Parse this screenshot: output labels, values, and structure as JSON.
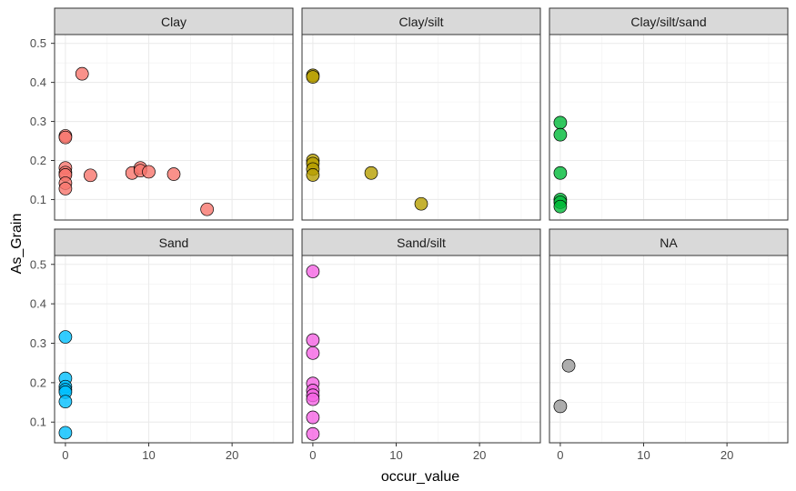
{
  "chart_data": {
    "type": "scatter",
    "xlabel": "occur_value",
    "ylabel": "As_Grain",
    "xlim": [
      -1.3,
      27.3
    ],
    "ylim": [
      0.0475,
      0.5225
    ],
    "x_ticks": [
      0,
      10,
      20
    ],
    "x_tick_labels": [
      "0",
      "10",
      "20"
    ],
    "y_ticks": [
      0.1,
      0.2,
      0.3,
      0.4,
      0.5
    ],
    "y_tick_labels": [
      "0.1",
      "0.2",
      "0.3",
      "0.4",
      "0.5"
    ],
    "grid": true,
    "theme": "bw",
    "strip_fill": "#d9d9d9",
    "panels": [
      {
        "name": "Clay",
        "color": "#F8766D",
        "points": [
          {
            "x": 2,
            "y": 0.422
          },
          {
            "x": 0,
            "y": 0.263
          },
          {
            "x": 0,
            "y": 0.259
          },
          {
            "x": 0,
            "y": 0.181
          },
          {
            "x": 0,
            "y": 0.169
          },
          {
            "x": 0,
            "y": 0.163
          },
          {
            "x": 0,
            "y": 0.142
          },
          {
            "x": 0,
            "y": 0.128
          },
          {
            "x": 3,
            "y": 0.162
          },
          {
            "x": 8,
            "y": 0.168
          },
          {
            "x": 9,
            "y": 0.181
          },
          {
            "x": 9,
            "y": 0.174
          },
          {
            "x": 10,
            "y": 0.171
          },
          {
            "x": 13,
            "y": 0.165
          },
          {
            "x": 17,
            "y": 0.075
          }
        ]
      },
      {
        "name": "Clay/silt",
        "color": "#B79F00",
        "points": [
          {
            "x": 0,
            "y": 0.418
          },
          {
            "x": 0,
            "y": 0.414
          },
          {
            "x": 0,
            "y": 0.2
          },
          {
            "x": 0,
            "y": 0.192
          },
          {
            "x": 0,
            "y": 0.178
          },
          {
            "x": 0,
            "y": 0.163
          },
          {
            "x": 7,
            "y": 0.168
          },
          {
            "x": 13,
            "y": 0.089
          }
        ]
      },
      {
        "name": "Clay/silt/sand",
        "color": "#00BA38",
        "points": [
          {
            "x": 0,
            "y": 0.297
          },
          {
            "x": 0,
            "y": 0.266
          },
          {
            "x": 0,
            "y": 0.168
          },
          {
            "x": 0,
            "y": 0.1
          },
          {
            "x": 0,
            "y": 0.093
          },
          {
            "x": 0,
            "y": 0.082
          }
        ]
      },
      {
        "name": "Sand",
        "color": "#00BFFF",
        "points": [
          {
            "x": 0,
            "y": 0.316
          },
          {
            "x": 0,
            "y": 0.211
          },
          {
            "x": 0,
            "y": 0.19
          },
          {
            "x": 0,
            "y": 0.182
          },
          {
            "x": 0,
            "y": 0.176
          },
          {
            "x": 0,
            "y": 0.152
          },
          {
            "x": 0,
            "y": 0.073
          }
        ]
      },
      {
        "name": "Sand/silt",
        "color": "#F564E3",
        "points": [
          {
            "x": 0,
            "y": 0.482
          },
          {
            "x": 0,
            "y": 0.308
          },
          {
            "x": 0,
            "y": 0.275
          },
          {
            "x": 0,
            "y": 0.198
          },
          {
            "x": 0,
            "y": 0.18
          },
          {
            "x": 0,
            "y": 0.168
          },
          {
            "x": 0,
            "y": 0.158
          },
          {
            "x": 0,
            "y": 0.112
          },
          {
            "x": 0,
            "y": 0.07
          }
        ]
      },
      {
        "name": "NA",
        "color": "#999999",
        "points": [
          {
            "x": 1,
            "y": 0.243
          },
          {
            "x": 0,
            "y": 0.14
          }
        ]
      }
    ]
  }
}
